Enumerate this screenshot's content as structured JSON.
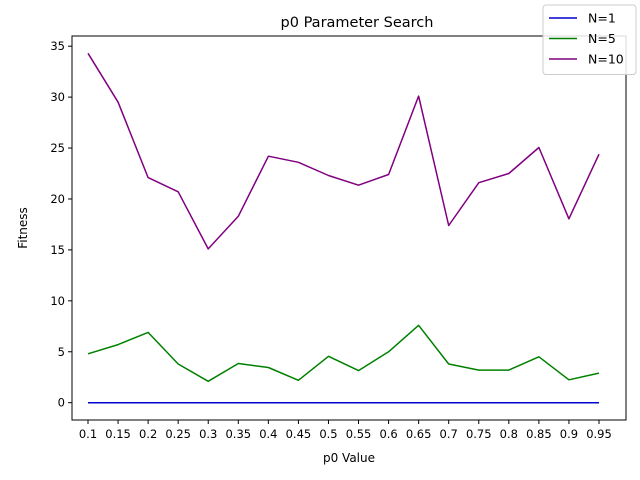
{
  "chart_data": {
    "type": "line",
    "title": "p0 Parameter Search",
    "xlabel": "p0 Value",
    "ylabel": "Fitness",
    "categories": [
      "0.1",
      "0.15",
      "0.2",
      "0.25",
      "0.3",
      "0.35",
      "0.4",
      "0.45",
      "0.5",
      "0.55",
      "0.6",
      "0.65",
      "0.7",
      "0.75",
      "0.8",
      "0.85",
      "0.9",
      "0.95"
    ],
    "ylim": [
      -1.7,
      36
    ],
    "yticks": [
      0,
      5,
      10,
      15,
      20,
      25,
      30,
      35
    ],
    "grid": false,
    "legend_position": "top-right",
    "series": [
      {
        "name": "N=1",
        "color": "#0000cc",
        "values": [
          0,
          0,
          0,
          0,
          0,
          0,
          0,
          0,
          0,
          0,
          0,
          0,
          0,
          0,
          0,
          0,
          0,
          0
        ]
      },
      {
        "name": "N=5",
        "color": "#008000",
        "values": [
          4.8,
          5.7,
          6.9,
          3.8,
          2.1,
          3.85,
          3.45,
          2.2,
          4.55,
          3.15,
          5.0,
          7.6,
          3.8,
          3.2,
          3.2,
          4.5,
          2.25,
          2.9
        ]
      },
      {
        "name": "N=10",
        "color": "#800080",
        "values": [
          34.3,
          29.5,
          22.1,
          20.7,
          15.1,
          18.3,
          24.2,
          23.6,
          22.3,
          21.35,
          22.4,
          30.1,
          17.4,
          21.6,
          22.5,
          25.05,
          18.05,
          24.4
        ]
      }
    ]
  }
}
